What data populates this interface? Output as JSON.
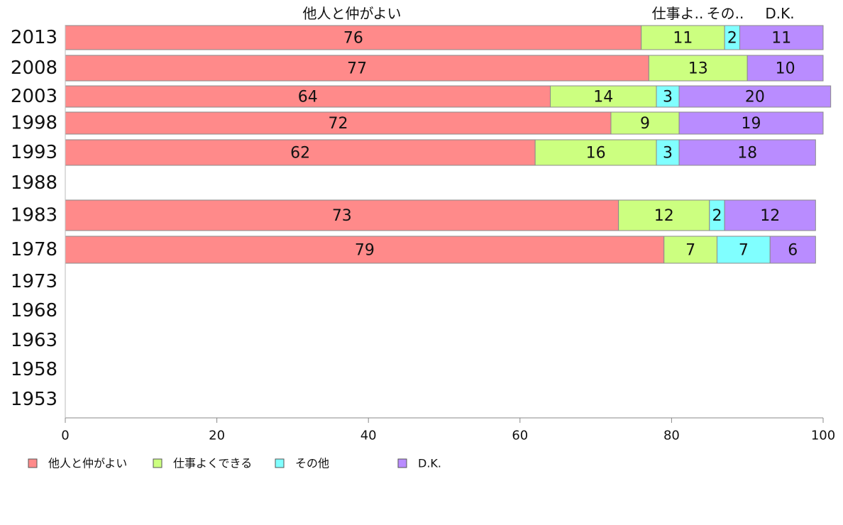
{
  "chart_data": {
    "type": "bar",
    "orientation": "horizontal",
    "stacked": true,
    "categories": [
      "2013",
      "2008",
      "2003",
      "1998",
      "1993",
      "1988",
      "1983",
      "1978",
      "1973",
      "1968",
      "1963",
      "1958",
      "1953"
    ],
    "series": [
      {
        "name": "他人と仲がよい",
        "color": "#ff8a8a",
        "values": [
          76,
          77,
          64,
          72,
          62,
          null,
          73,
          79,
          null,
          null,
          null,
          null,
          null
        ]
      },
      {
        "name": "仕事よくできる",
        "color": "#ccff80",
        "values": [
          11,
          13,
          14,
          9,
          16,
          null,
          12,
          7,
          null,
          null,
          null,
          null,
          null
        ]
      },
      {
        "name": "その他",
        "color": "#80ffff",
        "values": [
          2,
          null,
          3,
          null,
          3,
          null,
          2,
          7,
          null,
          null,
          null,
          null,
          null
        ]
      },
      {
        "name": "D.K.",
        "color": "#b98cff",
        "values": [
          11,
          10,
          20,
          19,
          18,
          null,
          12,
          6,
          null,
          null,
          null,
          null,
          null
        ]
      }
    ],
    "top_labels": [
      "他人と仲がよい",
      "仕事よ..",
      "その..",
      "D.K."
    ],
    "xlim": [
      0,
      100
    ],
    "xticks": [
      0,
      20,
      40,
      60,
      80,
      100
    ],
    "grid": false,
    "legend": "bottom-left"
  }
}
